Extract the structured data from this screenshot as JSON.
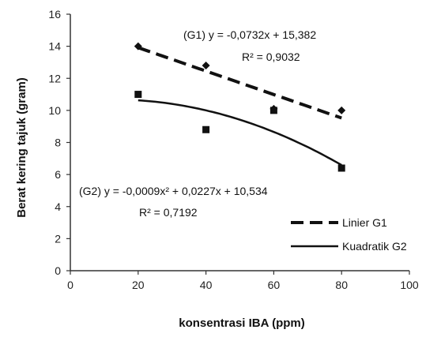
{
  "chart_data": {
    "type": "scatter",
    "xlabel": "konsentrasi IBA (ppm)",
    "ylabel": "Berat kering tajuk (gram)",
    "xlim": [
      0,
      100
    ],
    "ylim": [
      0,
      16
    ],
    "x_ticks": [
      "0",
      "20",
      "40",
      "60",
      "80",
      "100"
    ],
    "y_ticks": [
      "0",
      "2",
      "4",
      "6",
      "8",
      "10",
      "12",
      "14",
      "16"
    ],
    "grid": false,
    "series": [
      {
        "name": "G1",
        "marker": "diamond",
        "x": [
          20,
          40,
          60,
          80
        ],
        "y": [
          14.0,
          12.8,
          10.1,
          10.0
        ]
      },
      {
        "name": "G2",
        "marker": "square",
        "x": [
          20,
          40,
          60,
          80
        ],
        "y": [
          11.0,
          8.8,
          10.0,
          6.4
        ]
      }
    ],
    "trendlines": [
      {
        "series": "G1",
        "name": "Linier G1",
        "style": "dashed",
        "coefficients": {
          "a": -0.0732,
          "b": 15.382
        },
        "x_range": [
          20,
          80
        ]
      },
      {
        "series": "G2",
        "name": "Kuadratik G2",
        "style": "solid",
        "coefficients": {
          "a": -0.0009,
          "b": 0.0227,
          "c": 10.534
        },
        "x_range": [
          20,
          80
        ]
      }
    ],
    "annotations": {
      "g1_equation": "(G1)  y = -0,0732x + 15,382",
      "g1_r2": "R² = 0,9032",
      "g2_equation": "(G2)  y = -0,0009x² + 0,0227x + 10,534",
      "g2_r2": "R² = 0,7192"
    },
    "legend": {
      "position": "bottom-right",
      "items": [
        "Linier G1",
        "Kuadratik G2"
      ]
    }
  }
}
